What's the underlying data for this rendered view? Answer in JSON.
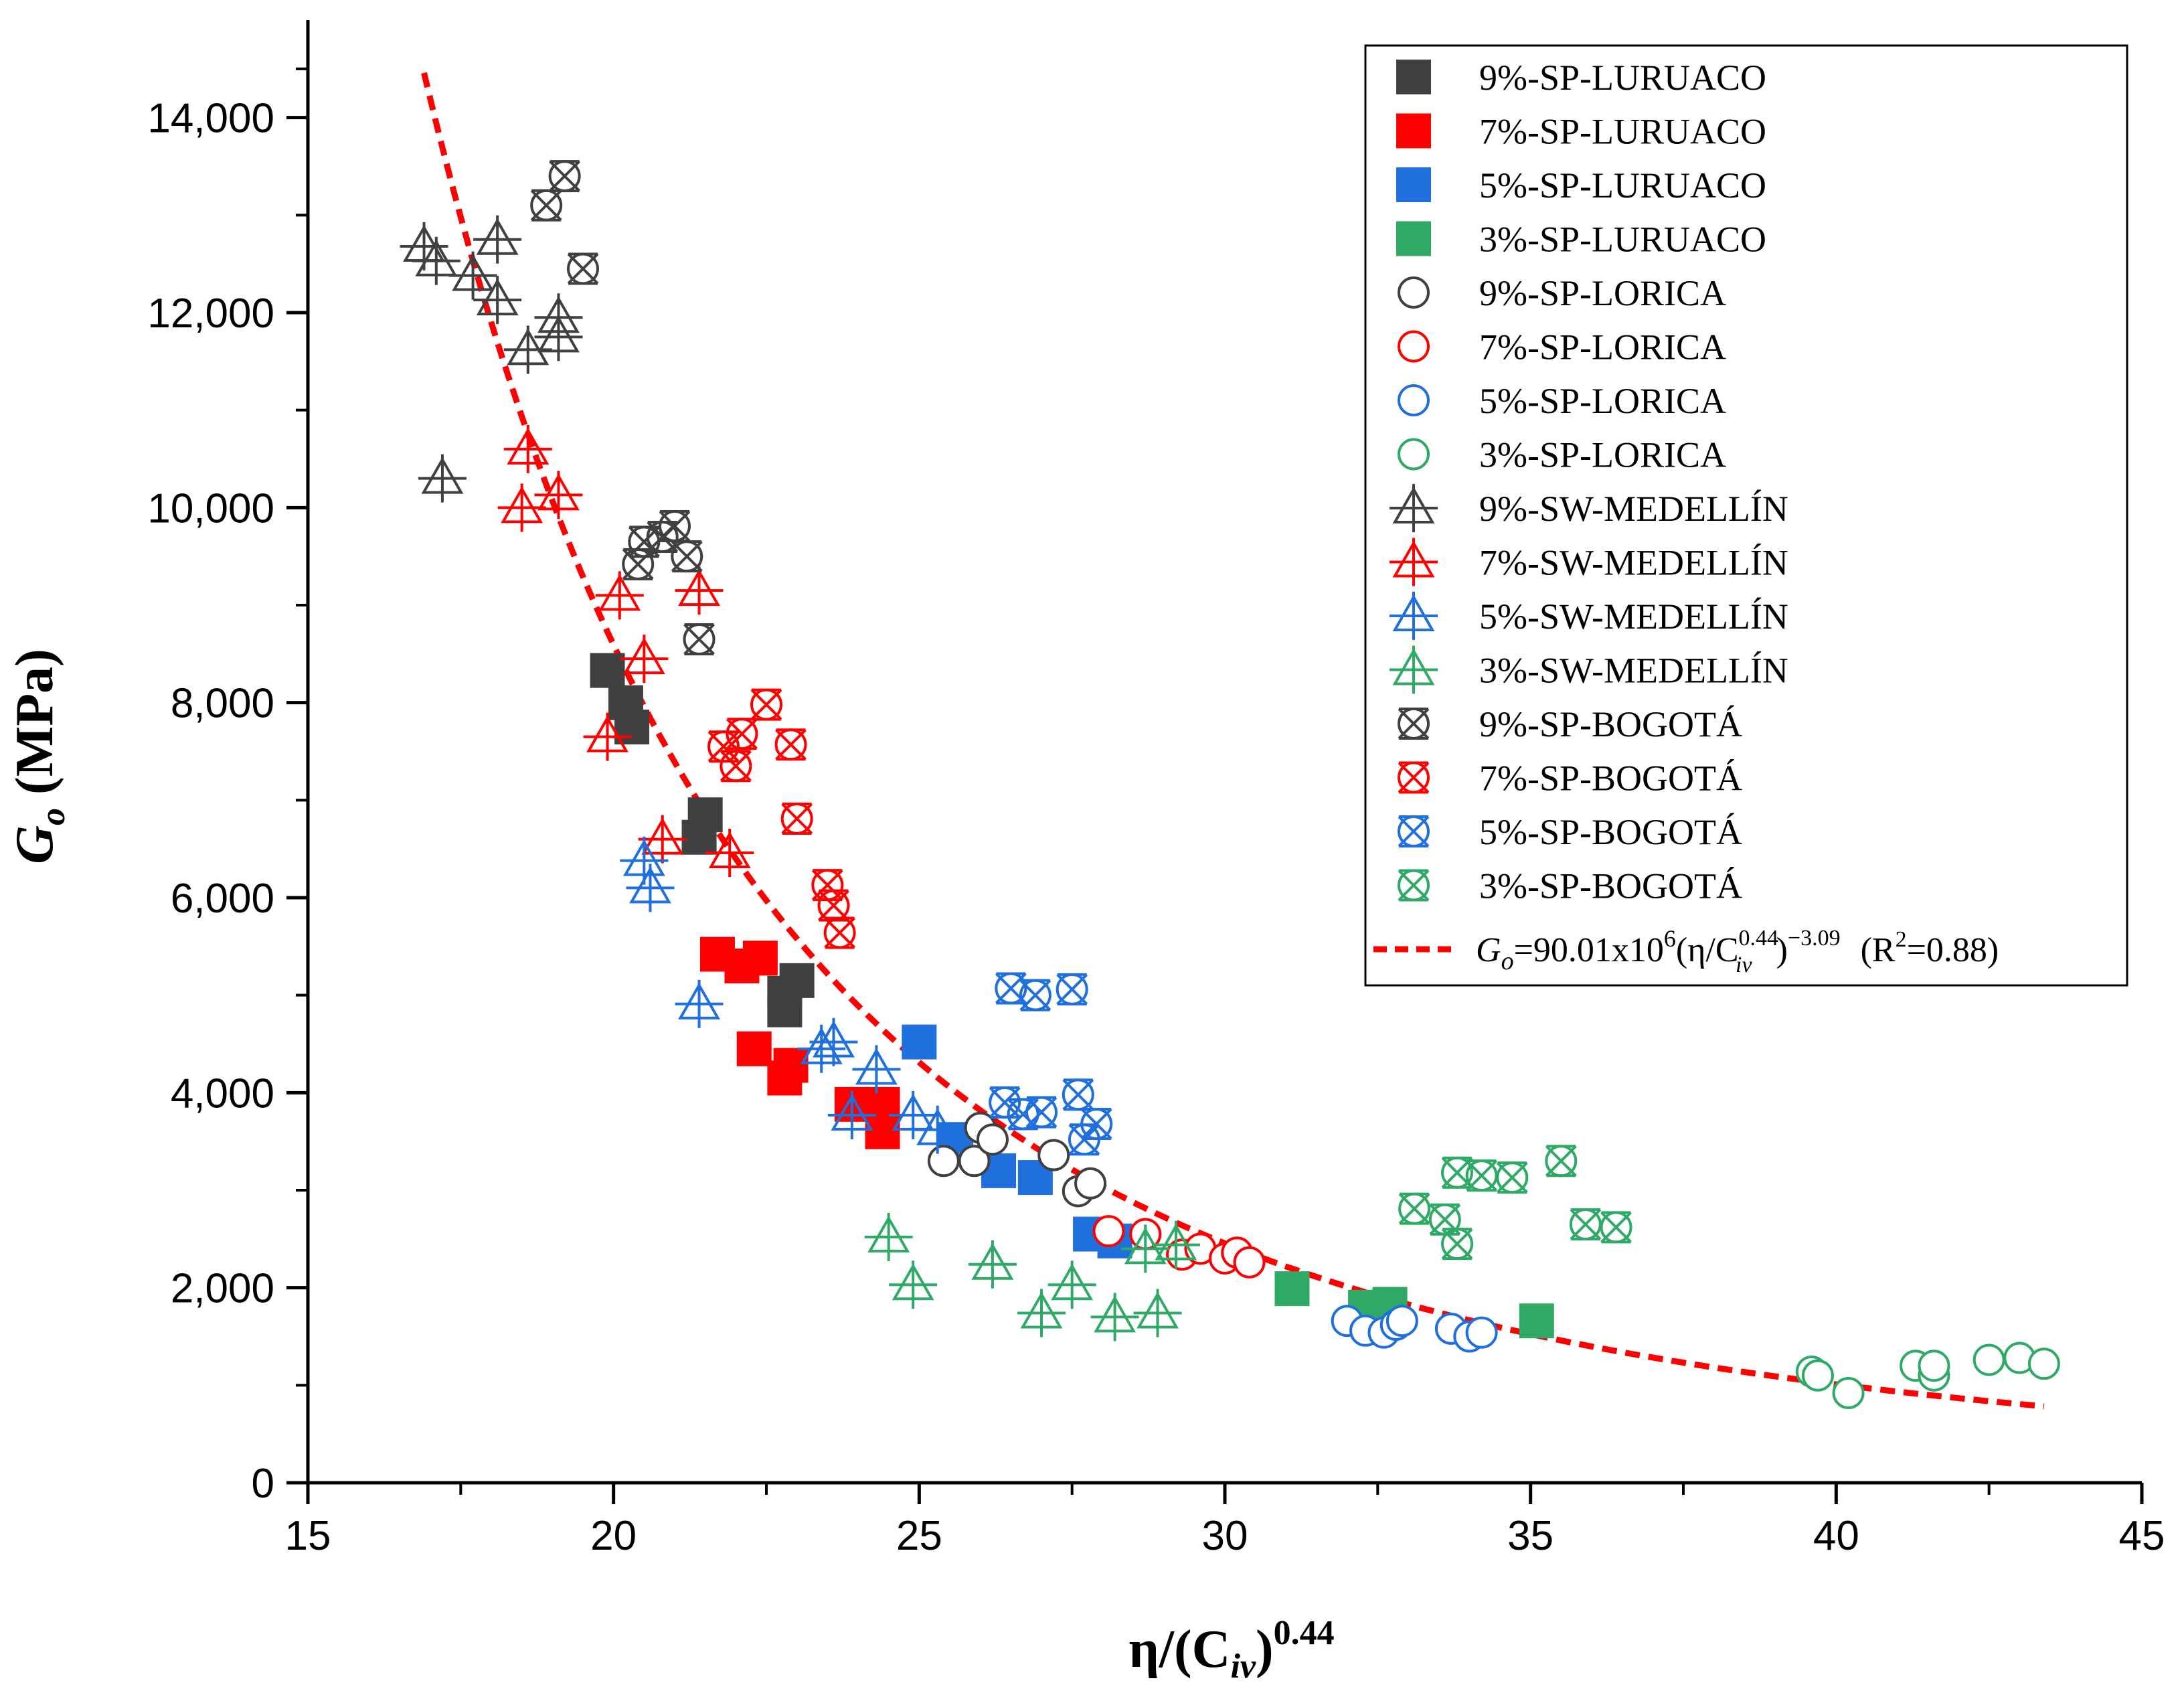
{
  "chart_data": {
    "type": "scatter",
    "title": "",
    "xlabel": {
      "main": "η/(C",
      "sub": "iv",
      "close": ")",
      "sup": "0.44"
    },
    "ylabel": {
      "main": "G",
      "sub": "o",
      "rest": " (MPa)"
    },
    "xlim": [
      15,
      45
    ],
    "ylim": [
      0,
      15000
    ],
    "x_ticks": [
      15,
      20,
      25,
      30,
      35,
      40,
      45
    ],
    "x_tick_labels": [
      "15",
      "20",
      "25",
      "30",
      "35",
      "40",
      "45"
    ],
    "y_ticks": [
      0,
      2000,
      4000,
      6000,
      8000,
      10000,
      12000,
      14000
    ],
    "y_tick_labels": [
      "0",
      "2,000",
      "4,000",
      "6,000",
      "8,000",
      "10,000",
      "12,000",
      "14,000"
    ],
    "grid": false,
    "legend_position": "top-right",
    "series": [
      {
        "name": "9%-SP-LURUACO",
        "marker": "square-filled",
        "color": "#404040",
        "points": [
          [
            19.9,
            8330
          ],
          [
            20.2,
            8000
          ],
          [
            20.3,
            7750
          ],
          [
            21.4,
            6620
          ],
          [
            21.5,
            6850
          ],
          [
            22.8,
            5020
          ],
          [
            22.8,
            4850
          ],
          [
            23.0,
            5150
          ]
        ]
      },
      {
        "name": "7%-SP-LURUACO",
        "marker": "square-filled",
        "color": "#ff0000",
        "points": [
          [
            21.7,
            5420
          ],
          [
            22.1,
            5300
          ],
          [
            22.4,
            5380
          ],
          [
            22.3,
            4450
          ],
          [
            22.8,
            4150
          ],
          [
            22.9,
            4280
          ],
          [
            23.9,
            3880
          ],
          [
            24.4,
            3600
          ],
          [
            24.4,
            3880
          ]
        ]
      },
      {
        "name": "5%-SP-LURUACO",
        "marker": "square-filled",
        "color": "#1f6fdc",
        "points": [
          [
            25.0,
            4520
          ],
          [
            25.6,
            3520
          ],
          [
            26.3,
            3200
          ],
          [
            26.9,
            3130
          ],
          [
            27.8,
            2550
          ],
          [
            28.2,
            2480
          ]
        ]
      },
      {
        "name": "3%-SP-LURUACO",
        "marker": "square-filled",
        "color": "#2eaa66",
        "points": [
          [
            31.1,
            1990
          ],
          [
            32.3,
            1800
          ],
          [
            32.7,
            1830
          ],
          [
            35.1,
            1660
          ]
        ]
      },
      {
        "name": "9%-SP-LORICA",
        "marker": "circle-open",
        "color": "#404040",
        "points": [
          [
            25.4,
            3300
          ],
          [
            25.9,
            3300
          ],
          [
            26.0,
            3640
          ],
          [
            26.2,
            3520
          ],
          [
            27.2,
            3360
          ],
          [
            27.6,
            2990
          ],
          [
            27.8,
            3070
          ]
        ]
      },
      {
        "name": "7%-SP-LORICA",
        "marker": "circle-open",
        "color": "#ff0000",
        "points": [
          [
            28.1,
            2580
          ],
          [
            28.7,
            2550
          ],
          [
            29.3,
            2340
          ],
          [
            29.6,
            2400
          ],
          [
            30.0,
            2300
          ],
          [
            30.2,
            2360
          ],
          [
            30.4,
            2260
          ]
        ]
      },
      {
        "name": "5%-SP-LORICA",
        "marker": "circle-open",
        "color": "#1f6fdc",
        "points": [
          [
            32.0,
            1660
          ],
          [
            32.3,
            1560
          ],
          [
            32.6,
            1540
          ],
          [
            32.8,
            1620
          ],
          [
            32.9,
            1660
          ],
          [
            33.7,
            1580
          ],
          [
            34.0,
            1500
          ],
          [
            34.2,
            1540
          ]
        ]
      },
      {
        "name": "3%-SP-LORICA",
        "marker": "circle-open",
        "color": "#2eaa66",
        "points": [
          [
            39.6,
            1140
          ],
          [
            39.7,
            1100
          ],
          [
            40.2,
            920
          ],
          [
            41.3,
            1200
          ],
          [
            41.6,
            1100
          ],
          [
            41.6,
            1200
          ],
          [
            42.5,
            1260
          ],
          [
            43.0,
            1280
          ],
          [
            43.4,
            1220
          ]
        ]
      },
      {
        "name": "9%-SW-MEDELLÍN",
        "marker": "triangle-cross",
        "color": "#404040",
        "points": [
          [
            16.9,
            12680
          ],
          [
            17.1,
            12530
          ],
          [
            17.7,
            12380
          ],
          [
            18.1,
            12750
          ],
          [
            18.1,
            12130
          ],
          [
            18.6,
            11620
          ],
          [
            19.1,
            11750
          ],
          [
            19.1,
            11950
          ],
          [
            17.2,
            10300
          ]
        ]
      },
      {
        "name": "7%-SW-MEDELLÍN",
        "marker": "triangle-cross",
        "color": "#ff0000",
        "points": [
          [
            18.5,
            10000
          ],
          [
            18.6,
            10600
          ],
          [
            19.1,
            10130
          ],
          [
            20.1,
            9100
          ],
          [
            20.5,
            8450
          ],
          [
            19.9,
            7650
          ],
          [
            20.8,
            6600
          ],
          [
            21.4,
            9150
          ],
          [
            21.9,
            6460
          ]
        ]
      },
      {
        "name": "5%-SW-MEDELLÍN",
        "marker": "triangle-cross",
        "color": "#1f6fdc",
        "points": [
          [
            20.5,
            6380
          ],
          [
            20.6,
            6100
          ],
          [
            21.4,
            4910
          ],
          [
            23.4,
            4450
          ],
          [
            23.6,
            4520
          ],
          [
            23.9,
            3770
          ],
          [
            24.3,
            4240
          ],
          [
            24.9,
            3770
          ],
          [
            25.3,
            3620
          ]
        ]
      },
      {
        "name": "3%-SW-MEDELLÍN",
        "marker": "triangle-cross",
        "color": "#2eaa66",
        "points": [
          [
            24.5,
            2520
          ],
          [
            24.9,
            2030
          ],
          [
            26.2,
            2240
          ],
          [
            27.0,
            1740
          ],
          [
            27.5,
            2030
          ],
          [
            28.2,
            1700
          ],
          [
            28.7,
            2400
          ],
          [
            28.9,
            1740
          ],
          [
            29.2,
            2440
          ]
        ]
      },
      {
        "name": "9%-SP-BOGOTÁ",
        "marker": "box-x",
        "color": "#404040",
        "points": [
          [
            18.9,
            13100
          ],
          [
            19.2,
            13400
          ],
          [
            19.5,
            12450
          ],
          [
            20.4,
            9420
          ],
          [
            20.5,
            9650
          ],
          [
            20.8,
            9700
          ],
          [
            21.0,
            9810
          ],
          [
            21.2,
            9500
          ],
          [
            21.4,
            8650
          ]
        ]
      },
      {
        "name": "7%-SP-BOGOTÁ",
        "marker": "box-x",
        "color": "#ff0000",
        "points": [
          [
            21.8,
            7550
          ],
          [
            22.0,
            7350
          ],
          [
            22.1,
            7680
          ],
          [
            22.5,
            7980
          ],
          [
            22.9,
            7570
          ],
          [
            23.0,
            6810
          ],
          [
            23.5,
            6130
          ],
          [
            23.6,
            5920
          ],
          [
            23.7,
            5640
          ]
        ]
      },
      {
        "name": "5%-SP-BOGOTÁ",
        "marker": "box-x",
        "color": "#1f6fdc",
        "points": [
          [
            26.5,
            5070
          ],
          [
            26.9,
            5000
          ],
          [
            27.5,
            5060
          ],
          [
            26.4,
            3900
          ],
          [
            27.0,
            3800
          ],
          [
            27.6,
            3980
          ],
          [
            27.7,
            3520
          ],
          [
            27.9,
            3680
          ],
          [
            26.7,
            3780
          ]
        ]
      },
      {
        "name": "3%-SP-BOGOTÁ",
        "marker": "box-x",
        "color": "#2eaa66",
        "points": [
          [
            33.1,
            2810
          ],
          [
            33.6,
            2700
          ],
          [
            33.8,
            2450
          ],
          [
            33.8,
            3180
          ],
          [
            34.2,
            3150
          ],
          [
            34.7,
            3130
          ],
          [
            35.5,
            3300
          ],
          [
            35.9,
            2650
          ],
          [
            36.4,
            2620
          ]
        ]
      }
    ],
    "fit": {
      "label_parts": {
        "lhs_main": "G",
        "lhs_sub": "o",
        "coef": "=90.01x10",
        "coef_sup": "6",
        "open": "(η/C",
        "c_sup": "0.44",
        "c_sub": "iv",
        "close": ")",
        "exp": "−3.09",
        "r2_prefix": "(R",
        "r2_sup": "2",
        "r2_value": "=0.88)"
      },
      "coefficient": 90010000,
      "exponent": -3.09,
      "x_range": [
        16.9,
        43.4
      ],
      "color": "#ff0000",
      "style": "dashed"
    }
  }
}
